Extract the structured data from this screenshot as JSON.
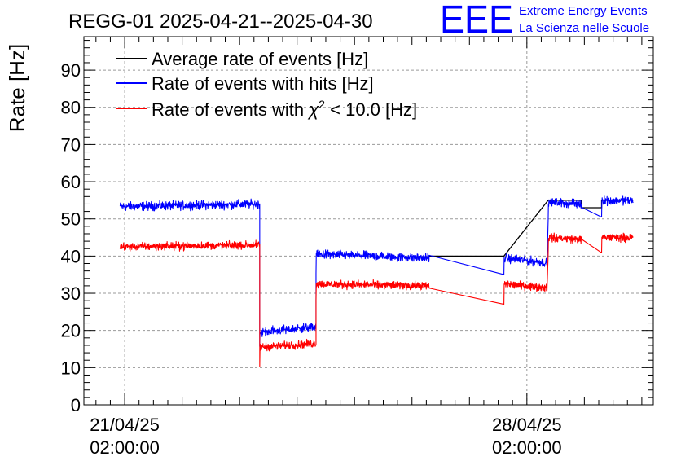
{
  "header": {
    "title": "REGG-01 2025-04-21--2025-04-30",
    "logo_text": "EEE",
    "logo_line1": "Extreme Energy Events",
    "logo_line2": "La Scienza nelle Scuole"
  },
  "colors": {
    "average": "#000000",
    "hits": "#0000ff",
    "chi2": "#ff0000",
    "logo": "#0000ff",
    "grid": "#9a9a9a"
  },
  "chart_data": {
    "type": "line",
    "title": "REGG-01 2025-04-21--2025-04-30",
    "xlabel": "",
    "ylabel": "Rate [Hz]",
    "x_unit": "days since 2025-04-21 02:00:00",
    "xlim": [
      -0.71,
      9.2
    ],
    "ylim": [
      0,
      99
    ],
    "y_ticks": [
      0,
      10,
      20,
      30,
      40,
      50,
      60,
      70,
      80,
      90
    ],
    "x_ticks": [
      {
        "x": 0,
        "date": "21/04/25",
        "time": "02:00:00"
      },
      {
        "x": 7,
        "date": "28/04/25",
        "time": "02:00:00"
      }
    ],
    "grid": true,
    "legend_position": "top-left",
    "legend": [
      {
        "key": "average",
        "text": "Average rate of events [Hz]"
      },
      {
        "key": "hits",
        "text": "Rate of events with hits [Hz]"
      },
      {
        "key": "chi2",
        "pre": "Rate of events with ",
        "chi": "χ",
        "sup": "2",
        "post": " < 10.0 [Hz]"
      }
    ],
    "series": [
      {
        "name": "Average rate of events [Hz]",
        "key": "average",
        "noise": 0.0,
        "points": [
          [
            5.3,
            40.0
          ],
          [
            6.6,
            40.0
          ],
          [
            7.37,
            55.0
          ],
          [
            7.95,
            55.0
          ],
          [
            7.95,
            53.0
          ],
          [
            8.3,
            53.0
          ],
          [
            8.3,
            55.0
          ],
          [
            8.85,
            55.0
          ]
        ]
      },
      {
        "name": "Rate of events with hits [Hz]",
        "key": "hits",
        "noise": 1.0,
        "segments": [
          {
            "x0": -0.08,
            "x1": 2.35,
            "y0": 53.3,
            "y1": 54.0
          },
          {
            "x0": 2.35,
            "x1": 3.33,
            "y0": 19.5,
            "y1": 21.0
          },
          {
            "x0": 3.33,
            "x1": 5.3,
            "y0": 40.5,
            "y1": 39.5
          },
          {
            "x0": 6.6,
            "x1": 7.35,
            "y0": 39.5,
            "y1": 38.2
          },
          {
            "x0": 7.37,
            "x1": 7.95,
            "y0": 54.5,
            "y1": 54.0
          },
          {
            "x0": 8.3,
            "x1": 8.85,
            "y0": 55.0,
            "y1": 54.8
          }
        ]
      },
      {
        "name": "Rate of events with chi2 < 10.0 [Hz]",
        "key": "chi2",
        "noise": 0.9,
        "segments": [
          {
            "x0": -0.08,
            "x1": 2.35,
            "y0": 42.5,
            "y1": 43.0
          },
          {
            "x0": 2.35,
            "x1": 3.33,
            "y0": 15.5,
            "y1": 16.5
          },
          {
            "x0": 3.33,
            "x1": 5.3,
            "y0": 32.5,
            "y1": 32.0
          },
          {
            "x0": 6.6,
            "x1": 7.35,
            "y0": 32.5,
            "y1": 31.5
          },
          {
            "x0": 7.37,
            "x1": 7.95,
            "y0": 45.0,
            "y1": 44.5
          },
          {
            "x0": 8.3,
            "x1": 8.85,
            "y0": 45.0,
            "y1": 45.0
          }
        ]
      }
    ]
  }
}
